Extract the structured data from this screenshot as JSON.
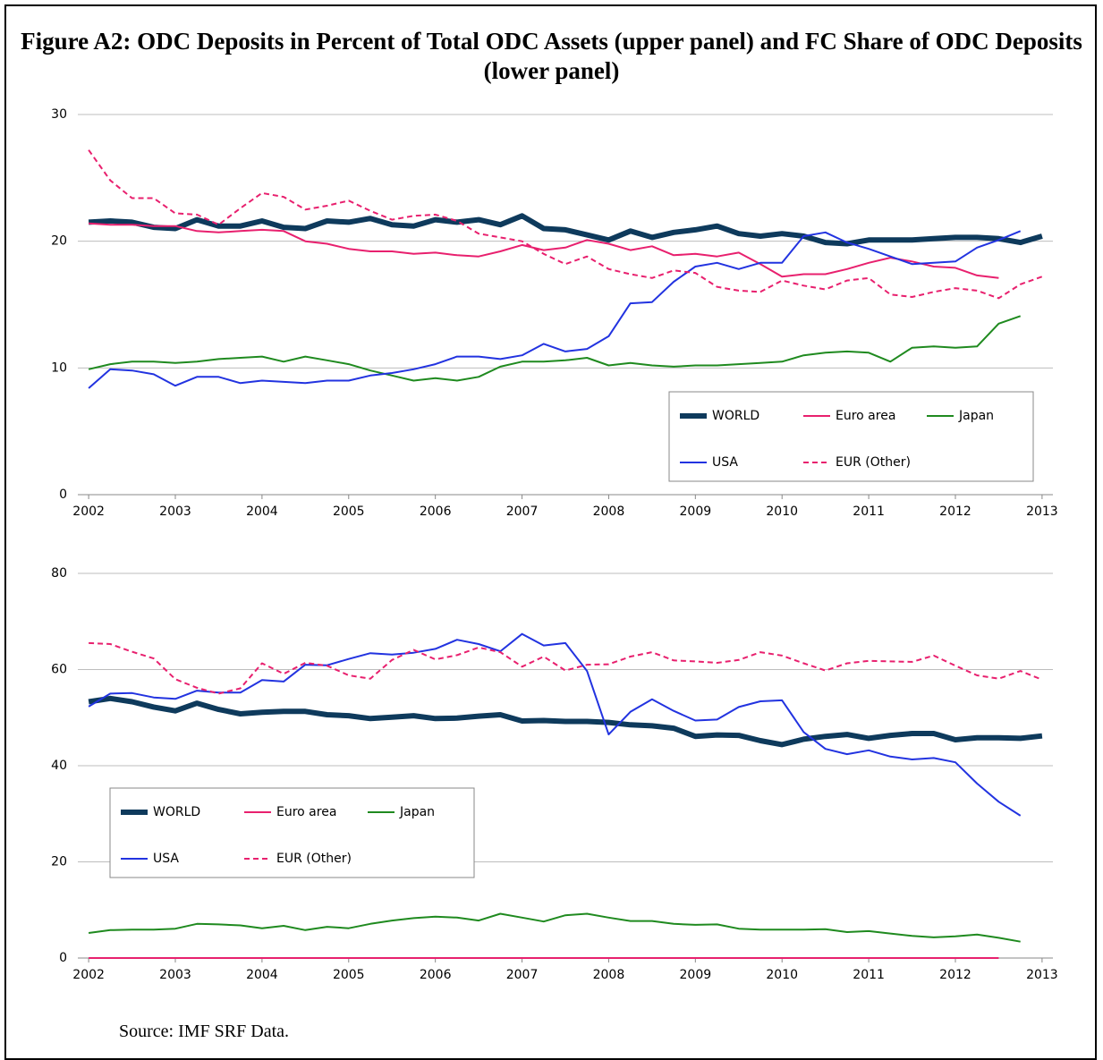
{
  "figure_title": "Figure A2: ODC Deposits in Percent of Total ODC Assets (upper panel) and FC Share of ODC Deposits (lower panel)",
  "source": "Source: IMF SRF Data.",
  "chart_data": [
    {
      "type": "line",
      "categories": [
        "2002",
        null,
        null,
        null,
        "2003",
        null,
        null,
        null,
        "2004",
        null,
        null,
        null,
        "2005",
        null,
        null,
        null,
        "2006",
        null,
        null,
        null,
        "2007",
        null,
        null,
        null,
        "2008",
        null,
        null,
        null,
        "2009",
        null,
        null,
        null,
        "2010",
        null,
        null,
        null,
        "2011",
        null,
        null,
        null,
        "2012",
        null,
        null,
        null,
        "2013"
      ],
      "ylim": [
        0,
        30
      ],
      "yticks": [
        0,
        10,
        20,
        30
      ],
      "grid": true,
      "legend": "lower right",
      "series": [
        {
          "name": "WORLD",
          "color": "#0e3a5c",
          "bold": true,
          "values": [
            21.5,
            21.6,
            21.5,
            21.1,
            21.0,
            21.7,
            21.2,
            21.2,
            21.6,
            21.1,
            21.0,
            21.6,
            21.5,
            21.8,
            21.3,
            21.2,
            21.7,
            21.5,
            21.7,
            21.3,
            22.0,
            21.0,
            20.9,
            20.5,
            20.1,
            20.8,
            20.3,
            20.7,
            20.9,
            21.2,
            20.6,
            20.4,
            20.6,
            20.4,
            19.9,
            19.8,
            20.1,
            20.1,
            20.1,
            20.2,
            20.3,
            20.3,
            20.2,
            19.9,
            20.4
          ]
        },
        {
          "name": "Euro area",
          "color": "#e8206e",
          "values": [
            21.4,
            21.3,
            21.3,
            21.2,
            21.2,
            20.8,
            20.7,
            20.8,
            20.9,
            20.8,
            20.0,
            19.8,
            19.4,
            19.2,
            19.2,
            19.0,
            19.1,
            18.9,
            18.8,
            19.2,
            19.7,
            19.3,
            19.5,
            20.1,
            19.8,
            19.3,
            19.6,
            18.9,
            19.0,
            18.8,
            19.1,
            18.2,
            17.2,
            17.4,
            17.4,
            17.8,
            18.3,
            18.7,
            18.4,
            18.0,
            17.9,
            17.3,
            17.1,
            null,
            null
          ]
        },
        {
          "name": "Japan",
          "color": "#1f8a1f",
          "values": [
            9.9,
            10.3,
            10.5,
            10.5,
            10.4,
            10.5,
            10.7,
            10.8,
            10.9,
            10.5,
            10.9,
            10.6,
            10.3,
            9.8,
            9.4,
            9.0,
            9.2,
            9.0,
            9.3,
            10.1,
            10.5,
            10.5,
            10.6,
            10.8,
            10.2,
            10.4,
            10.2,
            10.1,
            10.2,
            10.2,
            10.3,
            10.4,
            10.5,
            11.0,
            11.2,
            11.3,
            11.2,
            10.5,
            11.6,
            11.7,
            11.6,
            11.7,
            13.5,
            14.1,
            null
          ]
        },
        {
          "name": "USA",
          "color": "#2233e0",
          "values": [
            8.4,
            9.9,
            9.8,
            9.5,
            8.6,
            9.3,
            9.3,
            8.8,
            9.0,
            8.9,
            8.8,
            9.0,
            9.0,
            9.4,
            9.6,
            9.9,
            10.3,
            10.9,
            10.9,
            10.7,
            11.0,
            11.9,
            11.3,
            11.5,
            12.5,
            15.1,
            15.2,
            16.8,
            18.0,
            18.3,
            17.8,
            18.3,
            18.3,
            20.4,
            20.7,
            19.9,
            19.4,
            18.8,
            18.2,
            18.3,
            18.4,
            19.5,
            20.1,
            20.8,
            null
          ]
        },
        {
          "name": "EUR (Other)",
          "color": "#e8206e",
          "dashed": true,
          "values": [
            27.2,
            24.8,
            23.4,
            23.4,
            22.2,
            22.1,
            21.3,
            22.6,
            23.8,
            23.5,
            22.5,
            22.8,
            23.2,
            22.4,
            21.7,
            22.0,
            22.1,
            21.6,
            20.6,
            20.3,
            20.0,
            19.0,
            18.2,
            18.8,
            17.8,
            17.4,
            17.1,
            17.7,
            17.5,
            16.4,
            16.1,
            16.0,
            16.9,
            16.5,
            16.2,
            16.9,
            17.1,
            15.8,
            15.6,
            16.0,
            16.3,
            16.1,
            15.5,
            16.6,
            17.2
          ]
        }
      ]
    },
    {
      "type": "line",
      "categories": [
        "2002",
        null,
        null,
        null,
        "2003",
        null,
        null,
        null,
        "2004",
        null,
        null,
        null,
        "2005",
        null,
        null,
        null,
        "2006",
        null,
        null,
        null,
        "2007",
        null,
        null,
        null,
        "2008",
        null,
        null,
        null,
        "2009",
        null,
        null,
        null,
        "2010",
        null,
        null,
        null,
        "2011",
        null,
        null,
        null,
        "2012",
        null,
        null,
        null,
        "2013"
      ],
      "ylim": [
        0,
        80
      ],
      "yticks": [
        0,
        20,
        40,
        60,
        80
      ],
      "grid": true,
      "legend": "lower left",
      "series": [
        {
          "name": "WORLD",
          "color": "#0e3a5c",
          "bold": true,
          "values": [
            53.3,
            54.0,
            53.3,
            52.2,
            51.4,
            53.0,
            51.7,
            50.8,
            51.1,
            51.3,
            51.3,
            50.6,
            50.4,
            49.8,
            50.1,
            50.4,
            49.8,
            49.9,
            50.3,
            50.6,
            49.3,
            49.4,
            49.2,
            49.2,
            49.0,
            48.5,
            48.3,
            47.8,
            46.1,
            46.4,
            46.3,
            45.2,
            44.4,
            45.5,
            46.1,
            46.5,
            45.7,
            46.3,
            46.7,
            46.7,
            45.4,
            45.8,
            45.8,
            45.7,
            46.2
          ]
        },
        {
          "name": "Euro area",
          "color": "#e8206e",
          "values": [
            0,
            0,
            0,
            0,
            0,
            0,
            0,
            0,
            0,
            0,
            0,
            0,
            0,
            0,
            0,
            0,
            0,
            0,
            0,
            0,
            0,
            0,
            0,
            0,
            0,
            0,
            0,
            0,
            0,
            0,
            0,
            0,
            0,
            0,
            0,
            0,
            0,
            0,
            0,
            0,
            0,
            0,
            0,
            null,
            null
          ]
        },
        {
          "name": "Japan",
          "color": "#1f8a1f",
          "values": [
            5.2,
            5.8,
            5.9,
            5.9,
            6.1,
            7.1,
            7.0,
            6.8,
            6.2,
            6.7,
            5.8,
            6.5,
            6.2,
            7.1,
            7.8,
            8.3,
            8.6,
            8.4,
            7.8,
            9.2,
            8.4,
            7.6,
            8.9,
            9.2,
            8.4,
            7.7,
            7.7,
            7.1,
            6.9,
            7.0,
            6.1,
            5.9,
            5.9,
            5.9,
            6.0,
            5.4,
            5.6,
            5.1,
            4.6,
            4.3,
            4.5,
            4.9,
            4.2,
            3.4,
            null
          ]
        },
        {
          "name": "USA",
          "color": "#2233e0",
          "values": [
            52.3,
            55.0,
            55.1,
            54.2,
            53.9,
            55.6,
            55.2,
            55.2,
            57.8,
            57.5,
            61.0,
            60.9,
            62.2,
            63.4,
            63.1,
            63.5,
            64.3,
            66.2,
            65.3,
            63.8,
            67.4,
            65.0,
            65.5,
            59.7,
            46.5,
            51.2,
            53.8,
            51.4,
            49.4,
            49.6,
            52.2,
            53.4,
            53.6,
            47.0,
            43.5,
            42.4,
            43.2,
            41.9,
            41.3,
            41.6,
            40.7,
            36.3,
            32.5,
            29.6,
            null
          ]
        },
        {
          "name": "EUR (Other)",
          "color": "#e8206e",
          "dashed": true,
          "values": [
            65.5,
            65.3,
            63.7,
            62.3,
            58.0,
            56.2,
            55.0,
            56.1,
            61.3,
            59.1,
            61.4,
            60.8,
            58.8,
            58.1,
            62.0,
            64.1,
            62.1,
            63.0,
            64.6,
            63.6,
            60.6,
            62.7,
            59.8,
            61.0,
            61.1,
            62.7,
            63.6,
            61.9,
            61.7,
            61.4,
            62.0,
            63.6,
            62.9,
            61.3,
            59.8,
            61.3,
            61.8,
            61.7,
            61.6,
            62.9,
            60.8,
            58.8,
            58.1,
            59.7,
            57.9
          ]
        }
      ]
    }
  ]
}
